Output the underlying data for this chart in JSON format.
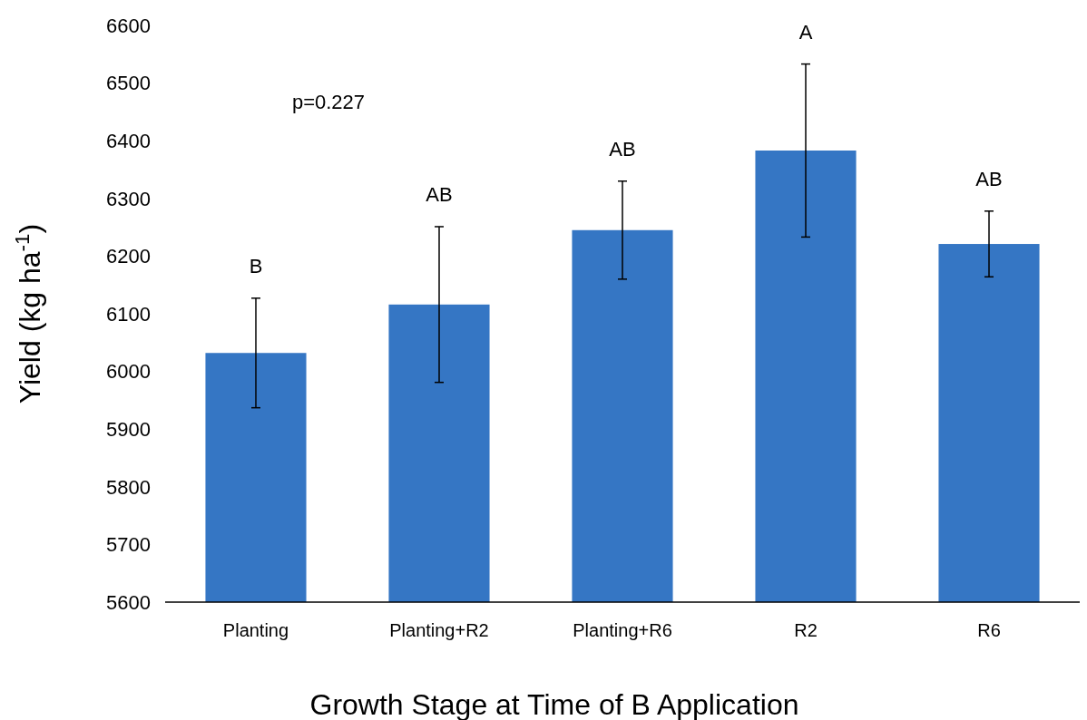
{
  "chart_data": {
    "type": "bar",
    "xlabel": "Growth Stage at Time of B Application",
    "ylabel": "Yield (kg ha$^{-1}$)",
    "categories": [
      "Planting",
      "Planting+R2",
      "Planting+R6",
      "R2",
      "R6"
    ],
    "values": [
      6032,
      6116,
      6245,
      6383,
      6221
    ],
    "errors": [
      95,
      135,
      85,
      150,
      57
    ],
    "color": "#3576c4",
    "ylim": [
      5600,
      6600
    ],
    "yticks": [
      5600,
      5700,
      5800,
      5900,
      6000,
      6100,
      6200,
      6300,
      6400,
      6500,
      6600
    ],
    "grid": false,
    "annotations": [
      {
        "text": "B",
        "x": "Planting",
        "y": 6127
      },
      {
        "text": "AB",
        "x": "Planting+R2",
        "y": 6251
      },
      {
        "text": "AB",
        "x": "Planting+R6",
        "y": 6330
      },
      {
        "text": "A",
        "x": "R2",
        "y": 6533
      },
      {
        "text": "AB",
        "x": "R6",
        "y": 6278
      },
      "p=0.227"
    ]
  }
}
